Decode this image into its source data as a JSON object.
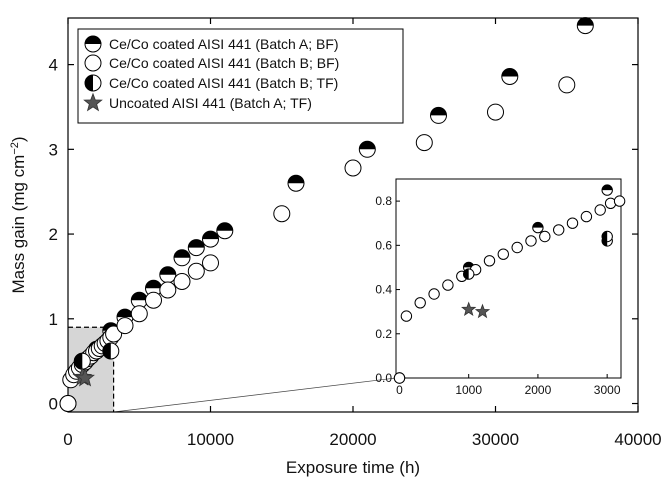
{
  "chart_data": {
    "type": "scatter",
    "xlabel": "Exposure time (h)",
    "ylabel_main": "Mass gain (mg cm",
    "ylabel_sup": "−2",
    "ylabel_close": ")",
    "xlim": [
      0,
      40000
    ],
    "ylim": [
      -0.1,
      4.55
    ],
    "xticks": [
      0,
      10000,
      20000,
      30000,
      40000
    ],
    "xtick_labels": [
      "0",
      "10000",
      "20000",
      "30000",
      "40000"
    ],
    "yticks": [
      0,
      1,
      2,
      3,
      4
    ],
    "ytick_labels": [
      "0",
      "1",
      "2",
      "3",
      "4"
    ],
    "legend_position": "top-left",
    "series": [
      {
        "name": "Ce/Co coated AISI 441 (Batch A; BF)",
        "marker": "half-top",
        "points": [
          [
            0,
            0
          ],
          [
            1000,
            0.5
          ],
          [
            2000,
            0.64
          ],
          [
            3000,
            0.86
          ],
          [
            4000,
            1.02
          ],
          [
            5000,
            1.22
          ],
          [
            6000,
            1.36
          ],
          [
            7000,
            1.52
          ],
          [
            8000,
            1.72
          ],
          [
            9000,
            1.84
          ],
          [
            10000,
            1.94
          ],
          [
            11000,
            2.04
          ],
          [
            16000,
            2.6
          ],
          [
            21000,
            3.0
          ],
          [
            26000,
            3.4
          ],
          [
            31000,
            3.86
          ],
          [
            36300,
            4.46
          ]
        ]
      },
      {
        "name": "Ce/Co coated AISI 441 (Batch B; BF)",
        "marker": "open",
        "points": [
          [
            0,
            0
          ],
          [
            200,
            0.28
          ],
          [
            400,
            0.34
          ],
          [
            600,
            0.38
          ],
          [
            800,
            0.42
          ],
          [
            1000,
            0.46
          ],
          [
            1200,
            0.49
          ],
          [
            1400,
            0.53
          ],
          [
            1600,
            0.56
          ],
          [
            1800,
            0.6
          ],
          [
            2000,
            0.62
          ],
          [
            2200,
            0.65
          ],
          [
            2400,
            0.68
          ],
          [
            2600,
            0.71
          ],
          [
            2800,
            0.74
          ],
          [
            3000,
            0.78
          ],
          [
            3200,
            0.82
          ],
          [
            4000,
            0.92
          ],
          [
            5000,
            1.06
          ],
          [
            6000,
            1.22
          ],
          [
            7000,
            1.34
          ],
          [
            8000,
            1.44
          ],
          [
            9000,
            1.56
          ],
          [
            10000,
            1.66
          ],
          [
            15000,
            2.24
          ],
          [
            20000,
            2.78
          ],
          [
            25000,
            3.08
          ],
          [
            30000,
            3.44
          ],
          [
            35000,
            3.76
          ]
        ]
      },
      {
        "name": "Ce/Co coated AISI 441 (Batch B; TF)",
        "marker": "half-left",
        "points": [
          [
            1000,
            0.5
          ],
          [
            3000,
            0.62
          ]
        ]
      },
      {
        "name": "Uncoated AISI 441 (Batch A; TF)",
        "marker": "star",
        "points": [
          [
            1000,
            0.31
          ],
          [
            1200,
            0.3
          ]
        ]
      }
    ],
    "zoom_region": {
      "x": [
        0,
        3200
      ],
      "y": [
        0,
        0.9
      ]
    },
    "inset": {
      "xlim": [
        -50,
        3200
      ],
      "ylim": [
        0,
        0.9
      ],
      "xticks": [
        0,
        1000,
        2000,
        3000
      ],
      "xtick_labels": [
        "0",
        "1000",
        "2000",
        "3000"
      ],
      "yticks": [
        0.0,
        0.2,
        0.4,
        0.6,
        0.8
      ],
      "ytick_labels": [
        "0.0",
        "0.2",
        "0.4",
        "0.6",
        "0.8"
      ],
      "series": [
        {
          "name": "Ce/Co coated AISI 441 (Batch A; BF)",
          "marker": "half-top",
          "points": [
            [
              0,
              0
            ],
            [
              1000,
              0.5
            ],
            [
              2000,
              0.68
            ],
            [
              3000,
              0.85
            ]
          ]
        },
        {
          "name": "Ce/Co coated AISI 441 (Batch B; BF)",
          "marker": "open",
          "points": [
            [
              0,
              0
            ],
            [
              100,
              0.28
            ],
            [
              300,
              0.34
            ],
            [
              500,
              0.38
            ],
            [
              700,
              0.42
            ],
            [
              900,
              0.46
            ],
            [
              1100,
              0.49
            ],
            [
              1300,
              0.53
            ],
            [
              1500,
              0.56
            ],
            [
              1700,
              0.59
            ],
            [
              1900,
              0.62
            ],
            [
              2100,
              0.64
            ],
            [
              2300,
              0.67
            ],
            [
              2500,
              0.7
            ],
            [
              2700,
              0.73
            ],
            [
              2900,
              0.76
            ],
            [
              3050,
              0.79
            ],
            [
              3180,
              0.8
            ]
          ]
        },
        {
          "name": "Ce/Co coated AISI 441 (Batch B; TF)",
          "marker": "half-left",
          "points": [
            [
              1000,
              0.47
            ],
            [
              3000,
              0.62
            ],
            [
              3000,
              0.64
            ]
          ]
        },
        {
          "name": "Uncoated AISI 441 (Batch A; TF)",
          "marker": "star",
          "points": [
            [
              1000,
              0.31
            ],
            [
              1200,
              0.3
            ]
          ]
        }
      ]
    }
  }
}
